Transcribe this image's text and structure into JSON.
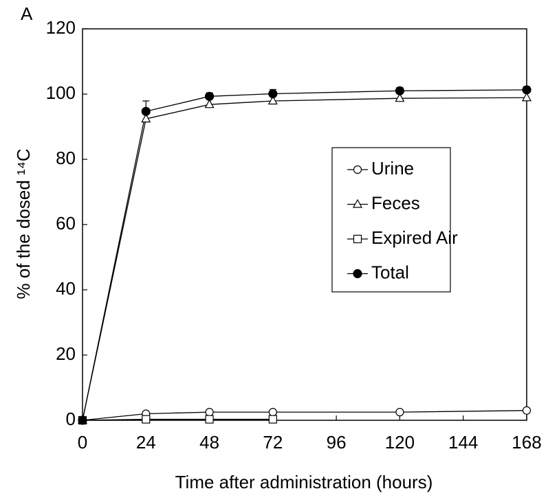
{
  "chart_data": {
    "type": "line",
    "panel_label": "A",
    "xlabel": "Time after administration (hours)",
    "ylabel": "% of the dosed ¹⁴C",
    "x": [
      0,
      24,
      48,
      72,
      120,
      168
    ],
    "xlim": [
      0,
      168
    ],
    "xticks": [
      0,
      24,
      48,
      72,
      96,
      120,
      144,
      168
    ],
    "ylim": [
      0,
      120
    ],
    "yticks": [
      0,
      20,
      40,
      60,
      80,
      100,
      120
    ],
    "grid": false,
    "legend": "right",
    "series": [
      {
        "name": "Urine",
        "color": "#000000",
        "marker": "circle-open",
        "values": [
          0,
          2,
          2.5,
          2.5,
          2.5,
          3
        ]
      },
      {
        "name": "Feces",
        "color": "#000000",
        "marker": "triangle-open",
        "values": [
          0,
          92.4,
          96.8,
          97.9,
          98.7,
          98.9
        ]
      },
      {
        "name": "Expired Air",
        "color": "#000000",
        "marker": "square-open",
        "values": [
          0,
          0.3,
          0.3,
          0.3,
          null,
          null
        ]
      },
      {
        "name": "Total",
        "color": "#000000",
        "marker": "circle-filled",
        "values": [
          0,
          94.7,
          99.3,
          100.1,
          101,
          101.3
        ],
        "errors": [
          null,
          3.2,
          1.1,
          1.3,
          1,
          1
        ]
      }
    ]
  }
}
